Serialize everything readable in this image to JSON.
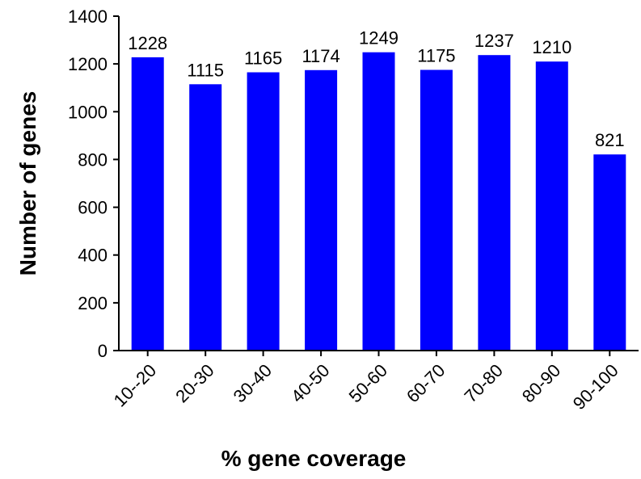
{
  "chart_data": {
    "type": "bar",
    "title": "",
    "xlabel": "% gene coverage",
    "ylabel": "Number of genes",
    "categories": [
      "10--20",
      "20-30",
      "30-40",
      "40-50",
      "50-60",
      "60-70",
      "70-80",
      "80-90",
      "90-100"
    ],
    "values": [
      1228,
      1115,
      1165,
      1174,
      1249,
      1175,
      1237,
      1210,
      821
    ],
    "data_labels": [
      "1228",
      "1115",
      "1165",
      "1174",
      "1249",
      "1175",
      "1237",
      "1210",
      "821"
    ],
    "ylim": [
      0,
      1400
    ],
    "yticks": [
      0,
      200,
      400,
      600,
      800,
      1000,
      1200,
      1400
    ],
    "ytick_labels": [
      "0",
      "200",
      "400",
      "600",
      "800",
      "1000",
      "1200",
      "1400"
    ],
    "grid": false,
    "legend": "none",
    "bar_color": "#0000FF"
  }
}
